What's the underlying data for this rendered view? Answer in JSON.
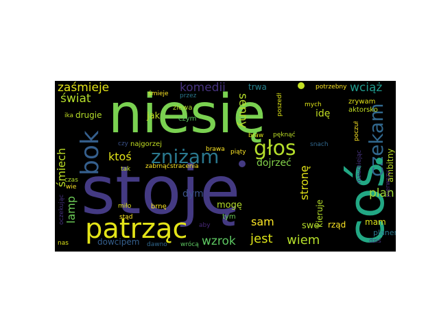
{
  "words": [
    {
      "text": "niesię"
    },
    {
      "text": "stoję"
    },
    {
      "text": "coś"
    },
    {
      "text": "patrząc"
    },
    {
      "text": "bok"
    },
    {
      "text": "zniżam"
    },
    {
      "text": "czekam"
    },
    {
      "text": "głos"
    },
    {
      "text": "zaśmieje"
    },
    {
      "text": "komedii"
    },
    {
      "text": "wciąż"
    },
    {
      "text": "świat"
    },
    {
      "text": "senny"
    },
    {
      "text": "ktoś"
    },
    {
      "text": "śmiech"
    },
    {
      "text": "lamp"
    },
    {
      "text": "drugie"
    },
    {
      "text": "stronę"
    },
    {
      "text": "plan"
    },
    {
      "text": "ambitny"
    },
    {
      "text": "wiem"
    },
    {
      "text": "jest"
    },
    {
      "text": "wzrok"
    },
    {
      "text": "sam"
    },
    {
      "text": "mogę"
    },
    {
      "text": "dym"
    },
    {
      "text": "dojrzeć"
    },
    {
      "text": "idę"
    },
    {
      "text": "kieruje"
    },
    {
      "text": "swe"
    },
    {
      "text": "rząd"
    },
    {
      "text": "mam"
    },
    {
      "text": "planem"
    },
    {
      "text": "dowcipem"
    },
    {
      "text": "trwa"
    },
    {
      "text": "jak"
    },
    {
      "text": "ziewa"
    },
    {
      "text": "czym"
    },
    {
      "text": "śmieje"
    },
    {
      "text": "przez"
    },
    {
      "text": "potrzebny"
    },
    {
      "text": "mych"
    },
    {
      "text": "zrywam"
    },
    {
      "text": "aktorsko"
    },
    {
      "text": "poszedł"
    },
    {
      "text": "najgorzej"
    },
    {
      "text": "brawa"
    },
    {
      "text": "piąty"
    },
    {
      "text": "braw"
    },
    {
      "text": "pęknąć"
    },
    {
      "text": "snach"
    },
    {
      "text": "zabrnąć"
    },
    {
      "text": "stracenia"
    },
    {
      "text": "czy"
    },
    {
      "text": "tak"
    },
    {
      "text": "ika"
    },
    {
      "text": "czas"
    },
    {
      "text": "wie"
    },
    {
      "text": "miło"
    },
    {
      "text": "stąd"
    },
    {
      "text": "brnę"
    },
    {
      "text": "tym"
    },
    {
      "text": "aby"
    },
    {
      "text": "wrócą"
    },
    {
      "text": "dawno"
    },
    {
      "text": "nas"
    },
    {
      "text": "dziś"
    },
    {
      "text": "oczekując"
    },
    {
      "text": "pierwszy"
    },
    {
      "text": "poczuł"
    },
    {
      "text": "rozumiejąc"
    }
  ]
}
